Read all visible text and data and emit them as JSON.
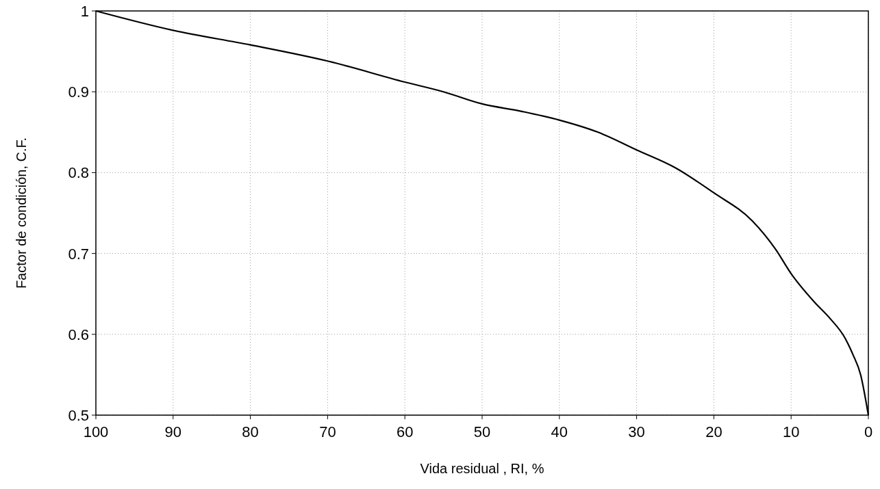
{
  "chart_data": {
    "type": "line",
    "xlabel": "Vida residual , RI, %",
    "ylabel": "Factor de condición, C.F.",
    "x": [
      100,
      90,
      80,
      70,
      60,
      55,
      50,
      45,
      40,
      35,
      30,
      25,
      20,
      15,
      12,
      10,
      7,
      5,
      3,
      2,
      1,
      0
    ],
    "series": [
      {
        "color": "#000000",
        "values": [
          1,
          0.976,
          0.958,
          0.938,
          0.912,
          0.9,
          0.885,
          0.876,
          0.865,
          0.85,
          0.828,
          0.806,
          0.775,
          0.74,
          0.705,
          0.675,
          0.64,
          0.62,
          0.595,
          0.575,
          0.55,
          0.5
        ]
      }
    ],
    "xlim": [
      100,
      0
    ],
    "ylim": [
      0.5,
      1
    ],
    "xticks": [
      100,
      90,
      80,
      70,
      60,
      50,
      40,
      30,
      20,
      10,
      0
    ],
    "yticks": [
      0.5,
      0.6,
      0.7,
      0.8,
      0.9,
      1
    ],
    "grid": true,
    "marker": "none",
    "line_style": "solid"
  }
}
